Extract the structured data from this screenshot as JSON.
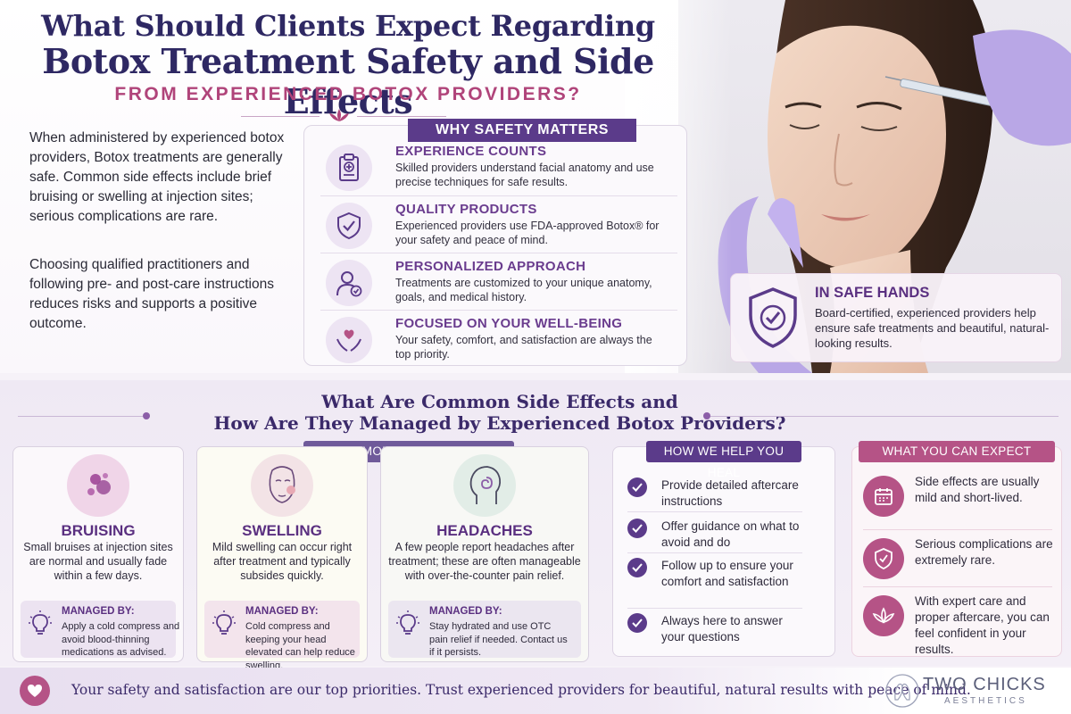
{
  "header": {
    "title_line1": "What Should Clients Expect Regarding",
    "title_line2": "Botox Treatment Safety and Side Effects",
    "subtitle": "FROM EXPERIENCED BOTOX PROVIDERS?"
  },
  "intro": {
    "paragraph1": "When administered by experienced botox providers, Botox treatments are generally safe. Common side effects include brief bruising or swelling at injection sites; serious complications are rare.",
    "paragraph2": "Choosing qualified practitioners and following pre- and post-care instructions reduces risks and supports a positive outcome."
  },
  "why_safety": {
    "label": "WHY SAFETY MATTERS",
    "items": [
      {
        "title": "EXPERIENCE COUNTS",
        "text": "Skilled providers understand facial anatomy and use precise techniques for safe results.",
        "icon": "clipboard-icon"
      },
      {
        "title": "QUALITY PRODUCTS",
        "text": "Experienced providers use FDA-approved Botox® for your safety and peace of mind.",
        "icon": "shield-check-icon"
      },
      {
        "title": "PERSONALIZED APPROACH",
        "text": "Treatments are customized to your unique anatomy, goals, and medical history.",
        "icon": "person-check-icon"
      },
      {
        "title": "FOCUSED ON YOUR WELL-BEING",
        "text": "Your safety, comfort, and satisfaction are always the top priority.",
        "icon": "heart-hands-icon"
      }
    ]
  },
  "safe_hands": {
    "title": "IN SAFE HANDS",
    "text": "Board-certified, experienced providers help ensure safe treatments and beautiful, natural-looking results."
  },
  "side_effects": {
    "title_line1": "What Are Common Side Effects and",
    "title_line2": "How Are They Managed by Experienced Botox Providers?",
    "label": "COMMON SIDE EFFECTS INCLUDE:",
    "effects": [
      {
        "title": "BRUISING",
        "text": "Small bruises at injection sites are normal and usually fade within a few days.",
        "managed_label": "MANAGED BY:",
        "managed_text": "Apply a cold compress and avoid blood-thinning medications as advised."
      },
      {
        "title": "SWELLING",
        "text": "Mild swelling can occur right after treatment and typically subsides quickly.",
        "managed_label": "MANAGED BY:",
        "managed_text": "Cold compress and keeping your head elevated can help reduce swelling."
      },
      {
        "title": "HEADACHES",
        "text": "A few people report headaches after treatment; these are often manageable with over-the-counter pain relief.",
        "managed_label": "MANAGED BY:",
        "managed_text": "Stay hydrated and use OTC pain relief if needed. Contact us if it persists."
      }
    ]
  },
  "heal": {
    "label": "HOW WE HELP YOU HEAL",
    "items": [
      "Provide detailed aftercare instructions",
      "Offer guidance on what to avoid and do",
      "Follow up to ensure your comfort and satisfaction",
      "Always here to answer your questions"
    ]
  },
  "expect": {
    "label": "WHAT YOU CAN EXPECT",
    "items": [
      {
        "text": "Side effects are usually mild and short-lived.",
        "icon": "calendar-icon"
      },
      {
        "text": "Serious complications are extremely rare.",
        "icon": "shield-check-icon"
      },
      {
        "text": "With expert care and proper aftercare, you can feel confident in your results.",
        "icon": "lotus-icon"
      }
    ]
  },
  "footer": {
    "text": "Your safety and satisfaction are our top priorities. Trust experienced providers for beautiful, natural results with peace of mind.",
    "brand_name": "TWO CHICKS",
    "brand_sub": "AESTHETICS"
  },
  "colors": {
    "navy": "#2e2863",
    "purple": "#5b3b8a",
    "magenta": "#b0447a",
    "rose": "#b55386"
  }
}
